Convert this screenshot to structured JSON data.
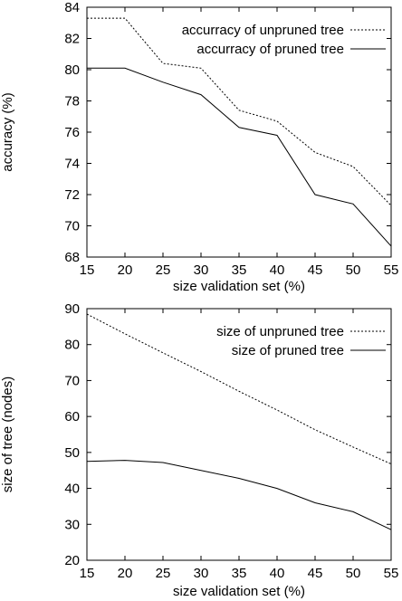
{
  "chart_data": [
    {
      "type": "line",
      "title": "",
      "xlabel": "size validation set (%)",
      "ylabel": "accuracy (%)",
      "x": [
        15,
        20,
        25,
        30,
        35,
        40,
        45,
        50,
        55
      ],
      "xlim": [
        15,
        55
      ],
      "ylim": [
        68,
        84
      ],
      "xticks": [
        "15",
        "20",
        "25",
        "30",
        "35",
        "40",
        "45",
        "50",
        "55"
      ],
      "yticks": [
        "68",
        "70",
        "72",
        "74",
        "76",
        "78",
        "80",
        "82",
        "84"
      ],
      "grid": false,
      "legend_position": "top-right",
      "series": [
        {
          "name": "accurracy of unpruned tree",
          "style": "dashed",
          "values": [
            83.3,
            83.3,
            80.4,
            80.1,
            77.4,
            76.7,
            74.7,
            73.8,
            71.3
          ]
        },
        {
          "name": "accurracy of pruned tree",
          "style": "solid",
          "values": [
            80.1,
            80.1,
            79.2,
            78.4,
            76.3,
            75.8,
            72.0,
            71.4,
            68.7
          ]
        }
      ]
    },
    {
      "type": "line",
      "title": "",
      "xlabel": "size validation set (%)",
      "ylabel": "size of tree (nodes)",
      "x": [
        15,
        20,
        25,
        30,
        35,
        40,
        45,
        50,
        55
      ],
      "xlim": [
        15,
        55
      ],
      "ylim": [
        20,
        90
      ],
      "xticks": [
        "15",
        "20",
        "25",
        "30",
        "35",
        "40",
        "45",
        "50",
        "55"
      ],
      "yticks": [
        "20",
        "30",
        "40",
        "50",
        "60",
        "70",
        "80",
        "90"
      ],
      "grid": false,
      "legend_position": "top-right",
      "series": [
        {
          "name": "size of unpruned tree",
          "style": "dashed",
          "values": [
            88.5,
            83.0,
            77.7,
            72.5,
            67.0,
            61.8,
            56.3,
            51.5,
            46.8
          ]
        },
        {
          "name": "size of pruned tree",
          "style": "solid",
          "values": [
            47.5,
            47.8,
            47.2,
            45.0,
            42.8,
            40.0,
            36.0,
            33.5,
            28.5
          ]
        }
      ]
    }
  ]
}
